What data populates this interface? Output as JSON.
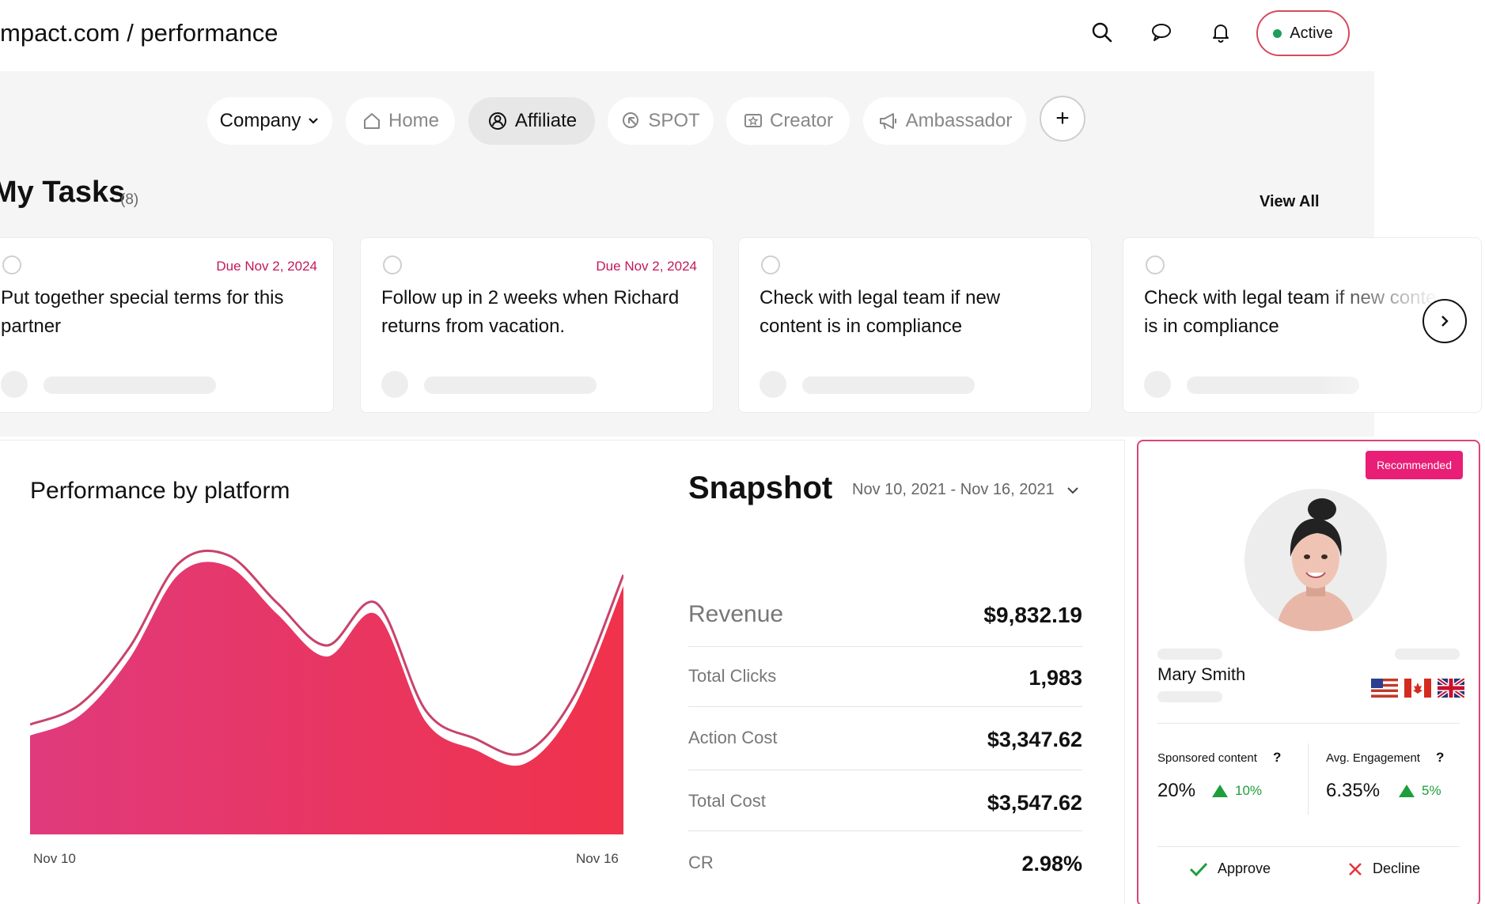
{
  "header": {
    "breadcrumb": "mpact.com / performance",
    "status_label": "Active",
    "icons": [
      "search-icon",
      "chat-icon",
      "bell-icon"
    ]
  },
  "tabs": [
    {
      "label": "Company",
      "icon": "chevron-down-icon"
    },
    {
      "label": "Home",
      "icon": "home-icon"
    },
    {
      "label": "Affiliate",
      "icon": "affiliate-icon"
    },
    {
      "label": "SPOT",
      "icon": "cursor-icon"
    },
    {
      "label": "Creator",
      "icon": "creator-icon"
    },
    {
      "label": "Ambassador",
      "icon": "megaphone-icon"
    }
  ],
  "add_tab_label": "+",
  "tasks": {
    "title": "My Tasks",
    "count": "(8)",
    "view_all": "View All",
    "items": [
      {
        "due": "Due Nov 2, 2024",
        "text": "Put together special terms for this partner"
      },
      {
        "due": "Due Nov 2, 2024",
        "text": "Follow up in 2 weeks when Richard returns from vacation."
      },
      {
        "due": "",
        "text": "Check with legal team if new content is in compliance"
      },
      {
        "due": "",
        "text": "Check with legal team if new content is in compliance"
      }
    ]
  },
  "performance": {
    "title": "Performance by platform",
    "x_start": "Nov 10",
    "x_end": "Nov 16",
    "accent": "#e91e63"
  },
  "chart_data": {
    "type": "area",
    "title": "Performance by platform",
    "x_tick_labels": [
      "Nov 10",
      "Nov 16"
    ],
    "x": [
      0,
      0.5,
      1,
      1.5,
      2,
      2.5,
      3,
      3.5,
      4,
      4.5,
      5,
      5.5,
      6
    ],
    "values": [
      0.35,
      0.42,
      0.62,
      0.92,
      0.95,
      0.78,
      0.63,
      0.78,
      0.4,
      0.3,
      0.25,
      0.45,
      0.88
    ],
    "ylim": [
      0,
      1
    ],
    "grid": false
  },
  "snapshot": {
    "title": "Snapshot",
    "date_range": "Nov 10, 2021 - Nov 16, 2021",
    "metrics": [
      {
        "label": "Revenue",
        "value": "$9,832.19"
      },
      {
        "label": "Total Clicks",
        "value": "1,983"
      },
      {
        "label": "Action Cost",
        "value": "$3,347.62"
      },
      {
        "label": "Total Cost",
        "value": "$3,547.62"
      },
      {
        "label": "CR",
        "value": "2.98%"
      }
    ]
  },
  "profile": {
    "badge": "Recommended",
    "name": "Mary Smith",
    "flags": [
      "us-flag-icon",
      "ca-flag-icon",
      "uk-flag-icon"
    ],
    "stats": [
      {
        "label": "Sponsored content",
        "value": "20%",
        "delta": "10%"
      },
      {
        "label": "Avg. Engagement",
        "value": "6.35%",
        "delta": "5%"
      }
    ],
    "approve_label": "Approve",
    "decline_label": "Decline"
  }
}
